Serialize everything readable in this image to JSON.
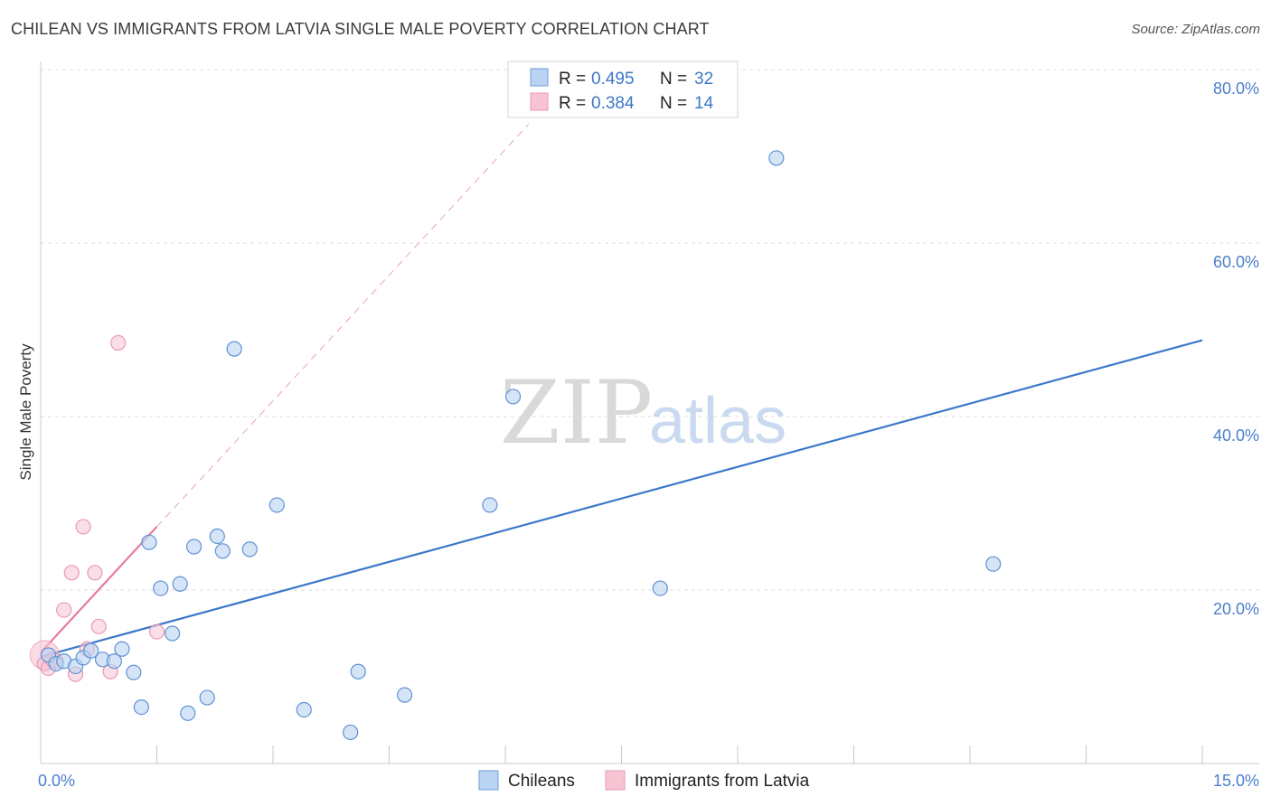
{
  "title": "CHILEAN VS IMMIGRANTS FROM LATVIA SINGLE MALE POVERTY CORRELATION CHART",
  "source": "Source: ZipAtlas.com",
  "watermark": {
    "zip": "ZIP",
    "atlas": "atlas"
  },
  "colors": {
    "blue": "#3b78c9",
    "blue_fill": "#b9d3f2",
    "pink": "#e87aa0",
    "pink_fill": "#f7c4d3",
    "tick": "#4a7fc9"
  },
  "legend": {
    "rows": [
      {
        "r_label": "R = ",
        "r_value": "0.495",
        "n_label": "N = ",
        "n_value": "32"
      },
      {
        "r_label": "R = ",
        "r_value": "0.384",
        "n_label": "N = ",
        "n_value": "14"
      }
    ]
  },
  "bottom_legend": [
    "Chileans",
    "Immigrants from Latvia"
  ],
  "chart_data": {
    "type": "scatter",
    "ylabel": "Single Male Poverty",
    "xlim": [
      0,
      15
    ],
    "ylim": [
      0,
      80
    ],
    "x_tick_labels": [
      "0.0%",
      "15.0%"
    ],
    "y_ticks": [
      20,
      40,
      60,
      80
    ],
    "y_tick_labels": [
      "20.0%",
      "40.0%",
      "60.0%",
      "80.0%"
    ],
    "grid": true,
    "series": [
      {
        "name": "Chileans",
        "points": [
          [
            0.1,
            12.5
          ],
          [
            0.2,
            11.5
          ],
          [
            0.3,
            11.8
          ],
          [
            0.45,
            11.2
          ],
          [
            0.55,
            12.2
          ],
          [
            0.65,
            13.0
          ],
          [
            0.8,
            12.0
          ],
          [
            0.95,
            11.8
          ],
          [
            1.05,
            13.2
          ],
          [
            1.2,
            10.5
          ],
          [
            1.3,
            6.5
          ],
          [
            1.4,
            25.5
          ],
          [
            1.55,
            20.2
          ],
          [
            1.7,
            15.0
          ],
          [
            1.8,
            20.7
          ],
          [
            1.9,
            5.8
          ],
          [
            1.98,
            25.0
          ],
          [
            2.15,
            7.6
          ],
          [
            2.28,
            26.2
          ],
          [
            2.35,
            24.5
          ],
          [
            2.5,
            47.8
          ],
          [
            2.7,
            24.7
          ],
          [
            3.05,
            29.8
          ],
          [
            3.4,
            6.2
          ],
          [
            4.0,
            3.6
          ],
          [
            4.1,
            10.6
          ],
          [
            4.7,
            7.9
          ],
          [
            5.8,
            29.8
          ],
          [
            6.1,
            42.3
          ],
          [
            8.0,
            20.2
          ],
          [
            9.5,
            69.8
          ],
          [
            12.3,
            23.0
          ]
        ]
      },
      {
        "name": "Immigrants from Latvia",
        "points": [
          [
            0.05,
            11.5
          ],
          [
            0.1,
            11.0
          ],
          [
            0.15,
            12.0
          ],
          [
            0.3,
            17.7
          ],
          [
            0.4,
            22.0
          ],
          [
            0.45,
            10.3
          ],
          [
            0.55,
            27.3
          ],
          [
            0.6,
            13.2
          ],
          [
            0.7,
            22.0
          ],
          [
            0.75,
            15.8
          ],
          [
            0.9,
            10.6
          ],
          [
            1.0,
            48.5
          ],
          [
            1.5,
            15.2
          ],
          [
            0.2,
            11.8
          ]
        ]
      }
    ],
    "trend_lines": [
      {
        "series": "Chileans",
        "x": [
          0,
          15
        ],
        "y": [
          12.3,
          48.8
        ]
      },
      {
        "series": "Immigrants from Latvia",
        "x": [
          0,
          1.5
        ],
        "y": [
          12.8,
          27.3
        ],
        "dashed_extension_to_x": 6.3
      }
    ]
  }
}
